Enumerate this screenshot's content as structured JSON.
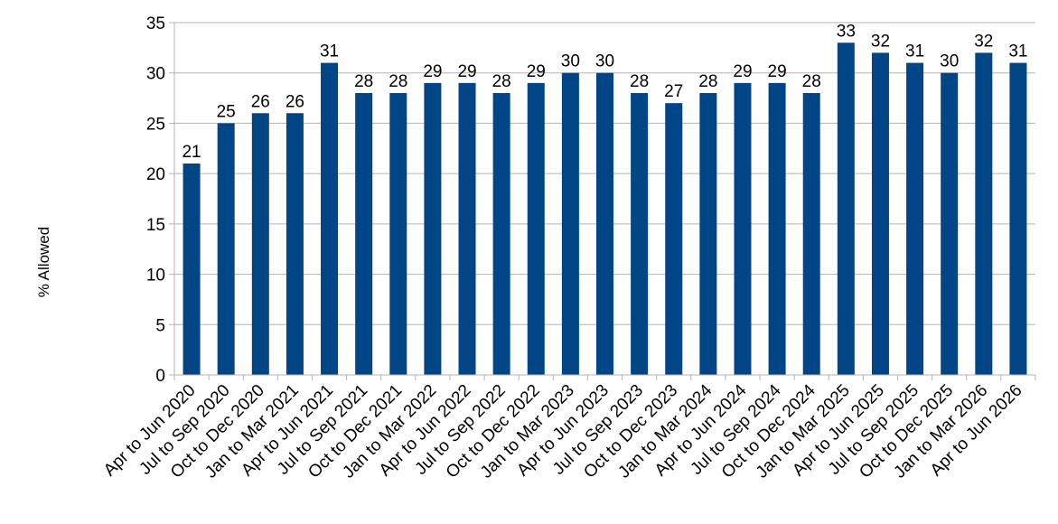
{
  "chart_data": {
    "type": "bar",
    "title": "",
    "xlabel": "",
    "ylabel": "% Allowed",
    "ylim": [
      0,
      35
    ],
    "yticks": [
      0,
      5,
      10,
      15,
      20,
      25,
      30,
      35
    ],
    "grid": "horizontal",
    "legend": "none",
    "bar_color": "#004586",
    "categories": [
      "Apr to Jun 2020",
      "Jul to Sep 2020",
      "Oct to Dec 2020",
      "Jan to Mar 2021",
      "Apr to Jun 2021",
      "Jul to Sep 2021",
      "Oct to Dec 2021",
      "Jan to Mar 2022",
      "Apr to Jun 2022",
      "Jul to Sep 2022",
      "Oct to Dec 2022",
      "Jan to Mar 2023",
      "Apr to Jun 2023",
      "Jul to Sep 2023",
      "Oct to Dec 2023",
      "Jan to Mar 2024",
      "Apr to Jun 2024",
      "Jul to Sep 2024",
      "Oct to Dec 2024",
      "Jan to Mar 2025",
      "Apr to Jun 2025",
      "Jul to Sep 2025",
      "Oct to Dec 2025",
      "Jan to Mar 2026",
      "Apr to Jun 2026"
    ],
    "values": [
      21,
      25,
      26,
      26,
      31,
      28,
      28,
      29,
      29,
      28,
      29,
      30,
      30,
      28,
      27,
      28,
      29,
      29,
      28,
      33,
      32,
      31,
      30,
      32,
      31
    ]
  }
}
